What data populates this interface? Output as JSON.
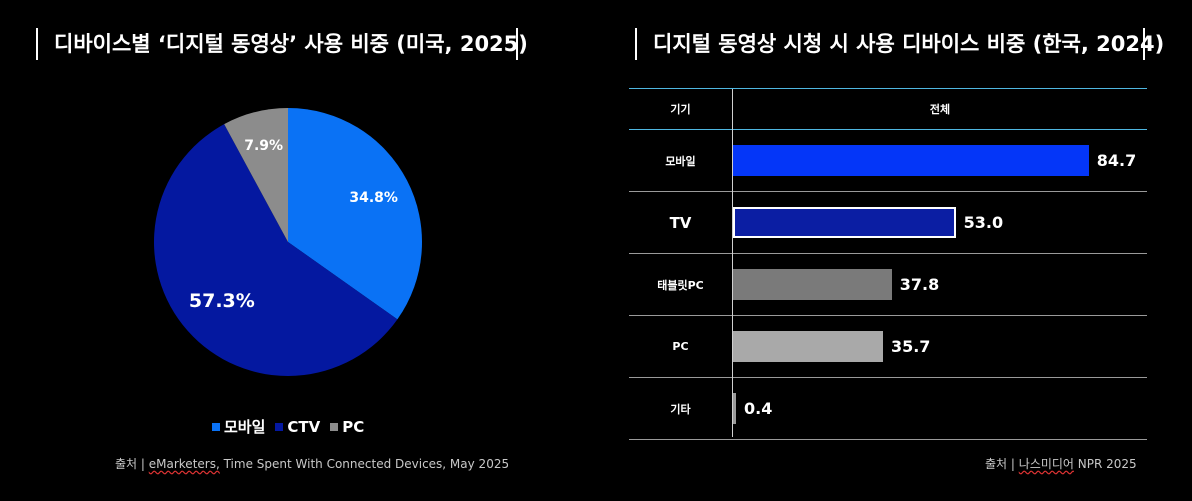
{
  "left": {
    "title": "디바이스별 ‘디지털 동영상’ 사용 비중 (미국, 2025)",
    "source_prefix": "출처 | ",
    "source_underlined": "eMarketers,",
    "source_rest": " Time Spent With Connected Devices, May 2025"
  },
  "right": {
    "title": "디지털 동영상 시청 시 사용 디바이스 비중 (한국, 2024)",
    "table_header": {
      "col1": "기기",
      "col2": "전체"
    },
    "source_prefix": "출처 | ",
    "source_underlined": "나스미디어",
    "source_rest": " NPR 2025"
  },
  "chart_data": [
    {
      "type": "pie",
      "title": "디바이스별 ‘디지털 동영상’ 사용 비중 (미국, 2025)",
      "labels": [
        "모바일",
        "CTV",
        "PC"
      ],
      "values": [
        34.8,
        57.3,
        7.9
      ],
      "value_labels": [
        "34.8%",
        "57.3%",
        "7.9%"
      ],
      "colors": [
        "#0a72f5",
        "#0418a0",
        "#8c8c8c"
      ],
      "legend": "bottom"
    },
    {
      "type": "bar",
      "orientation": "horizontal",
      "title": "디지털 동영상 시청 시 사용 디바이스 비중 (한국, 2024)",
      "categories": [
        "모바일",
        "TV",
        "태블릿PC",
        "PC",
        "기타"
      ],
      "values": [
        84.7,
        53.0,
        37.8,
        35.7,
        0.4
      ],
      "value_labels": [
        "84.7",
        "53.0",
        "37.8",
        "35.7",
        "0.4"
      ],
      "colors": [
        "#0436f8",
        "#0b1ea3",
        "#7a7a7a",
        "#a9a9a9",
        "#9a9a9a"
      ],
      "xlim": [
        0,
        100
      ]
    }
  ]
}
